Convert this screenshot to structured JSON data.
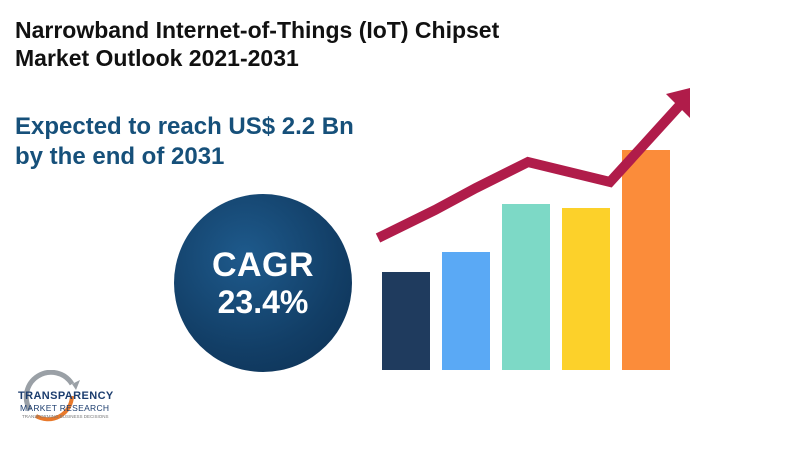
{
  "title": {
    "line1": "Narrowband Internet-of-Things (IoT) Chipset",
    "line2": "Market Outlook 2021-2031"
  },
  "subtitle": {
    "line1": "Expected to reach US$ 2.2 Bn",
    "line2": "by the end of 2031"
  },
  "cagr": {
    "label": "CAGR",
    "value": "23.4%"
  },
  "graphic": {
    "bar_colors": [
      "#1f3b5e",
      "#5aa9f5",
      "#7dd9c6",
      "#fcd12a",
      "#fb8c3a"
    ],
    "arrow_color": "#b01c4a"
  },
  "logo": {
    "name_line1": "TRANSPARENCY",
    "name_line2": "MARKET RESEARCH",
    "tagline": "TRANSFORMING BUSINESS DECISIONS"
  }
}
